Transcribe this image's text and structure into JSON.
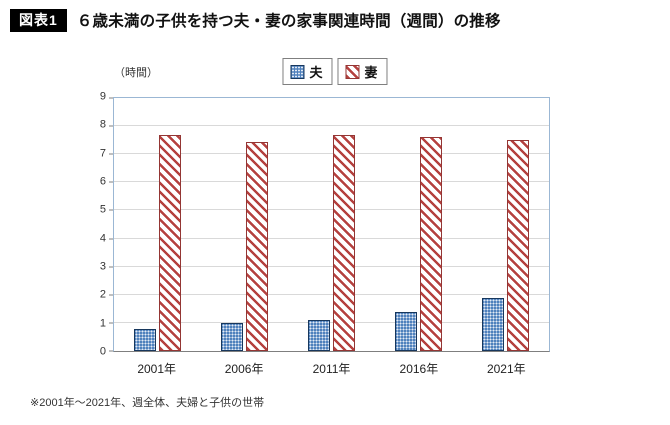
{
  "header": {
    "figure_label": "図表1",
    "title": "６歳未満の子供を持つ夫・妻の家事関連時間（週間）の推移"
  },
  "chart_data": {
    "type": "bar",
    "title": "６歳未満の子供を持つ夫・妻の家事関連時間（週間）の推移",
    "unit_label": "（時間）",
    "categories": [
      "2001年",
      "2006年",
      "2011年",
      "2016年",
      "2021年"
    ],
    "series": [
      {
        "name": "夫",
        "values": [
          0.8,
          1.0,
          1.1,
          1.4,
          1.9
        ],
        "fill": "#4f81bd",
        "pattern": "dots",
        "border": "#17375d"
      },
      {
        "name": "妻",
        "values": [
          7.7,
          7.45,
          7.7,
          7.6,
          7.5
        ],
        "fill": "#b5413f",
        "pattern": "diagonal-stripes",
        "border": "#943634"
      }
    ],
    "ylim": [
      0,
      9
    ],
    "yticks": [
      0,
      1,
      2,
      3,
      4,
      5,
      6,
      7,
      8,
      9
    ],
    "grid": true,
    "legend_position": "top-center",
    "xlabel": "",
    "ylabel": "（時間）"
  },
  "footnote": "※2001年～2021年、週全体、夫婦と子供の世帯"
}
